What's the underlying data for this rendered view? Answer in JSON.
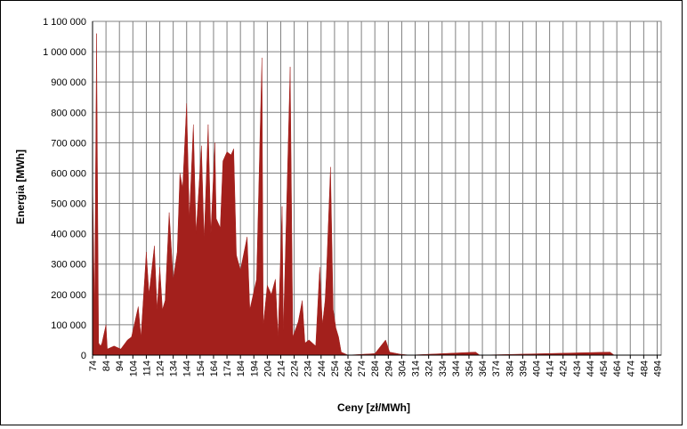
{
  "chart_data": {
    "type": "area",
    "x_label": "Ceny [zł/MWh]",
    "y_label": "Energia  [MWh]",
    "color": "#a3201c",
    "grid": true,
    "xlim": [
      74,
      497
    ],
    "ylim": [
      0,
      1100000
    ],
    "xticks": [
      74,
      84,
      94,
      104,
      114,
      124,
      134,
      144,
      154,
      164,
      174,
      184,
      194,
      204,
      214,
      224,
      234,
      244,
      254,
      264,
      274,
      284,
      294,
      304,
      314,
      324,
      334,
      344,
      354,
      364,
      374,
      384,
      394,
      404,
      414,
      424,
      434,
      444,
      454,
      464,
      474,
      484,
      494
    ],
    "yticks": [
      0,
      {
        "value": 100000,
        "label": "100 000"
      },
      {
        "value": 200000,
        "label": "200 000"
      },
      {
        "value": 300000,
        "label": "300 000"
      },
      {
        "value": 400000,
        "label": "400 000"
      },
      {
        "value": 500000,
        "label": "500 000"
      },
      {
        "value": 600000,
        "label": "600 000"
      },
      {
        "value": 700000,
        "label": "700 000"
      },
      {
        "value": 800000,
        "label": "800 000"
      },
      {
        "value": 900000,
        "label": "900 000"
      },
      {
        "value": 1000000,
        "label": "1 000 000"
      },
      {
        "value": 1100000,
        "label": "1 100 000"
      }
    ],
    "x": [
      74,
      75.5,
      77,
      78.5,
      80,
      81,
      84,
      85,
      90,
      95,
      100,
      103,
      108,
      110,
      114,
      116,
      120,
      122,
      124,
      126,
      128,
      131,
      134,
      137,
      139,
      141,
      144,
      146,
      149,
      151,
      155,
      157,
      160,
      162,
      165,
      166,
      169,
      171,
      174,
      177,
      179,
      181,
      184,
      189,
      191,
      196,
      200,
      201,
      204,
      207,
      210,
      212,
      215,
      216,
      221,
      223,
      227,
      230,
      232,
      235,
      240,
      243,
      245,
      247,
      248,
      251,
      253,
      255,
      257,
      259,
      264,
      284,
      292,
      295,
      303,
      310,
      359,
      362,
      459,
      462,
      497
    ],
    "values": [
      580000,
      150000,
      1060000,
      40000,
      30000,
      40000,
      100000,
      20000,
      30000,
      20000,
      50000,
      60000,
      160000,
      60000,
      340000,
      200000,
      360000,
      150000,
      290000,
      150000,
      180000,
      470000,
      250000,
      340000,
      600000,
      550000,
      830000,
      450000,
      760000,
      400000,
      690000,
      380000,
      760000,
      400000,
      700000,
      450000,
      420000,
      640000,
      670000,
      660000,
      680000,
      330000,
      280000,
      390000,
      150000,
      250000,
      980000,
      100000,
      230000,
      200000,
      250000,
      60000,
      490000,
      80000,
      950000,
      60000,
      110000,
      180000,
      40000,
      50000,
      30000,
      290000,
      100000,
      180000,
      270000,
      620000,
      150000,
      90000,
      60000,
      10000,
      0,
      5000,
      50000,
      10000,
      3000,
      0,
      10000,
      0,
      10000,
      0,
      0
    ]
  }
}
